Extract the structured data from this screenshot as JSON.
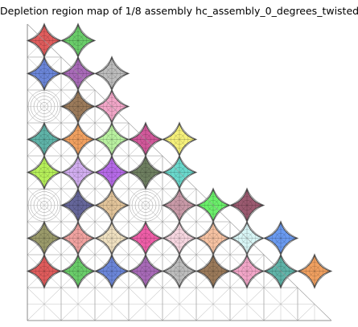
{
  "title": "Depletion region map of 1/8 assembly hc_assembly_0_degrees_twisted",
  "grid": {
    "rows": [
      [
        "#e05c5c",
        "#6acd6a"
      ],
      [
        "#6b86d9",
        "#a86ab8",
        "#bdbdbd"
      ],
      [
        "empty",
        "#9b7a5a",
        "#f2a6c8"
      ],
      [
        "#5fb3a8",
        "#f0a060",
        "#b9f1a0",
        "#d1589a",
        "#f5f07a"
      ],
      [
        "#b7f05a",
        "#d2aef0",
        "#b66ae8",
        "#6e7f60",
        "#6ad8cc"
      ],
      [
        "empty",
        "#65669a",
        "#e2c49a",
        "empty",
        "#c99aa8",
        "#6bf06b",
        "#9b5a70"
      ],
      [
        "#9a9a6a",
        "#f0a2a0",
        "#efe0c0",
        "#ef5ea8",
        "#f6d6e0",
        "#f6c2a2",
        "#d8f6f6",
        "#6a9af0"
      ],
      [
        "#e05c5c",
        "#6acd6a",
        "#6b86d9",
        "#a86ab8",
        "#bdbdbd",
        "#9b7a5a",
        "#f2a6c8",
        "#5fb3a8",
        "#f0a060"
      ]
    ]
  }
}
